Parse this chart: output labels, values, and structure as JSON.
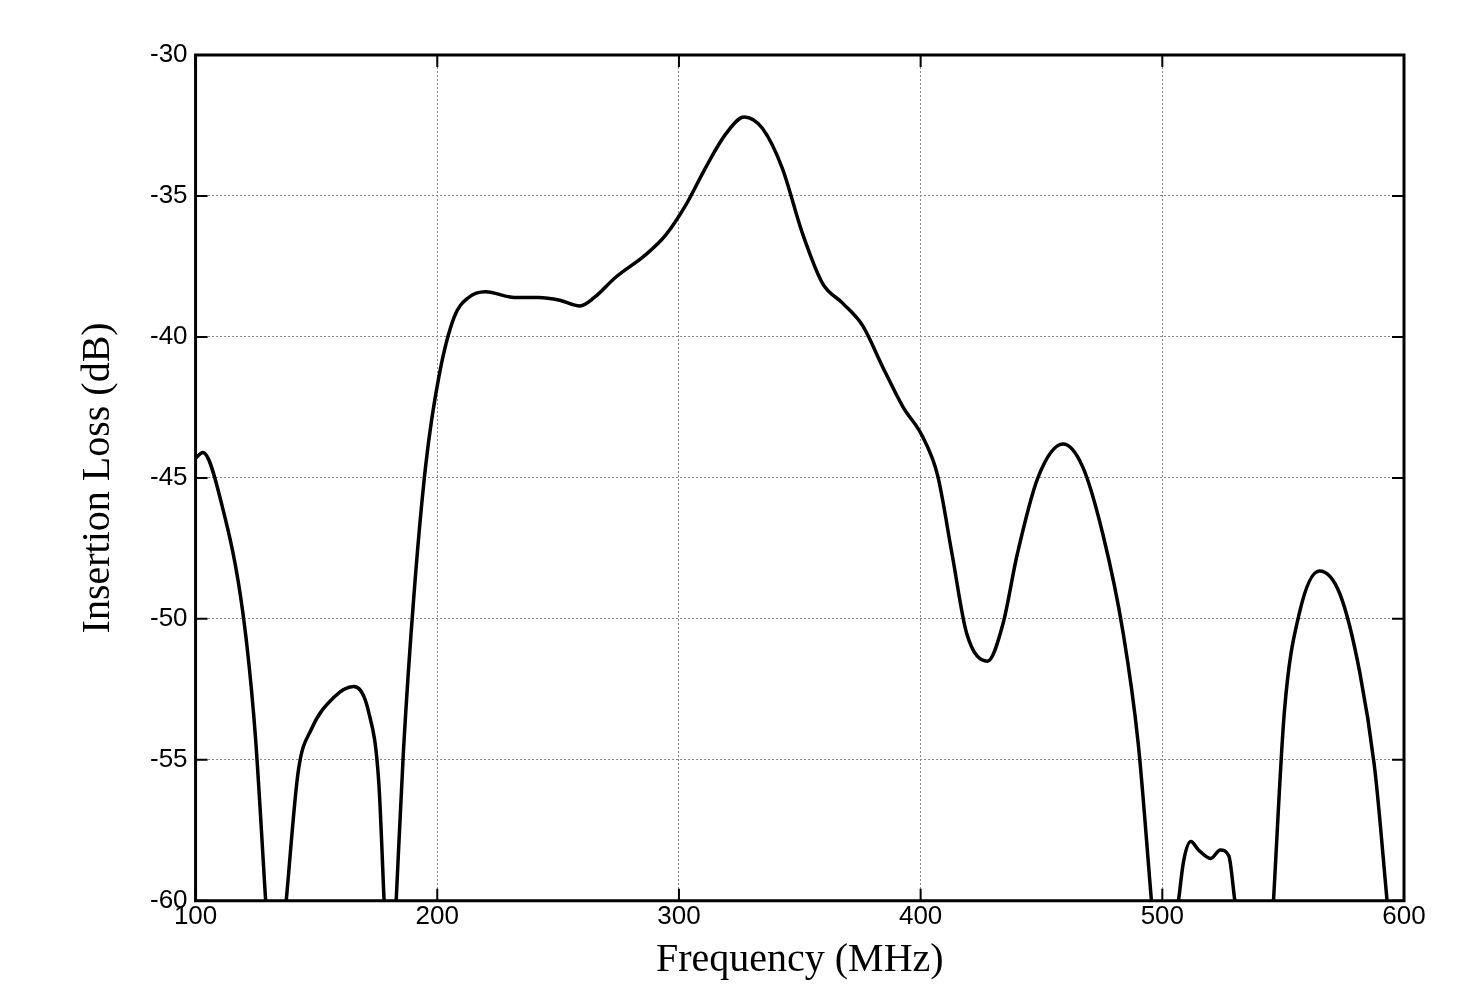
{
  "chart_data": {
    "type": "line",
    "xlabel": "Frequency (MHz)",
    "ylabel": "Insertion Loss (dB)",
    "xlim": [
      100,
      600
    ],
    "ylim": [
      -60,
      -30
    ],
    "xticks": [
      100,
      200,
      300,
      400,
      500,
      600
    ],
    "yticks": [
      -60,
      -55,
      -50,
      -45,
      -40,
      -35,
      -30
    ],
    "grid": true,
    "marker": "none",
    "line_style": "solid",
    "series": [
      {
        "color": "#000000",
        "x": [
          100,
          103,
          111,
          119.6,
          124.6,
          129,
          133,
          137.5,
          142.5,
          148,
          157,
          165.4,
          171.6,
          175.8,
          178,
          180.5,
          183,
          186,
          190.4,
          195.3,
          200.7,
          207,
          213,
          220,
          232,
          242,
          250.7,
          259,
          265,
          273.6,
          286,
          294.4,
          303,
          311,
          319.4,
          327,
          334.5,
          342.7,
          351,
          359.4,
          367.7,
          376,
          384.5,
          392.8,
          400.6,
          407,
          413,
          419,
          427.7,
          434,
          440,
          448.5,
          458.9,
          467,
          475.4,
          483.8,
          490,
          495.5,
          501,
          506.7,
          508.8,
          511.8,
          515,
          520,
          524,
          527.5,
          530,
          538,
          546,
          550.5,
          556.7,
          565,
          573.4,
          581.7,
          588,
          593
        ],
        "values": [
          -44.3,
          -44.1,
          -46.0,
          -49.8,
          -54.0,
          -60,
          null,
          -60,
          -55.4,
          -53.9,
          -52.8,
          -52.4,
          -53.3,
          -55.8,
          -60,
          null,
          -60,
          -54.7,
          -49.1,
          -44.5,
          -41.4,
          -39.3,
          -38.6,
          -38.4,
          -38.6,
          -38.6,
          -38.7,
          -38.9,
          -38.6,
          -37.9,
          -37.1,
          -36.4,
          -35.3,
          -34.0,
          -32.8,
          -32.2,
          -32.6,
          -34.0,
          -36.3,
          -38.1,
          -38.8,
          -39.6,
          -41.1,
          -42.5,
          -43.5,
          -44.9,
          -47.7,
          -50.5,
          -51.5,
          -50.2,
          -47.7,
          -45.0,
          -43.8,
          -44.6,
          -47.0,
          -50.5,
          -54.4,
          -60,
          null,
          -60,
          -58.6,
          -57.9,
          -58.2,
          -58.5,
          -58.2,
          -58.4,
          -60,
          null,
          -60,
          -53.3,
          -49.8,
          -48.3,
          -49.1,
          -51.9,
          -55.4,
          -60
        ]
      }
    ]
  }
}
